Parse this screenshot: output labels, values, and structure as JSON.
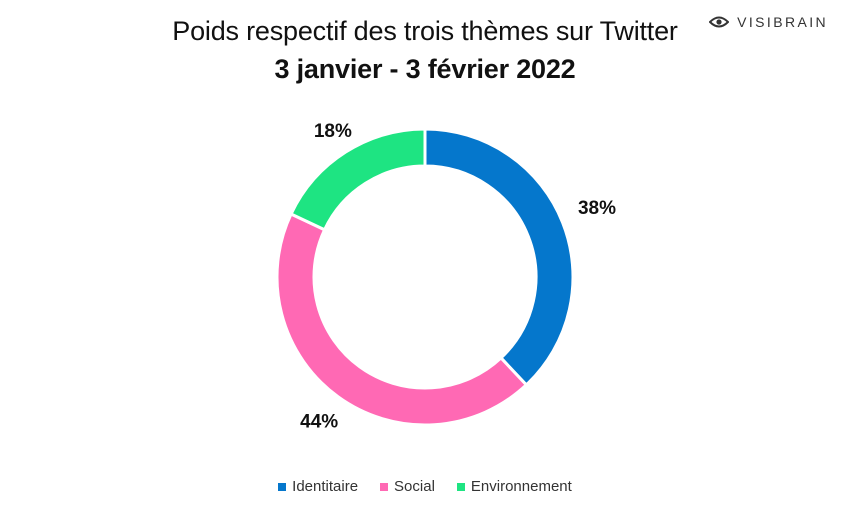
{
  "chart_title": "Poids respectif des trois thèmes sur Twitter",
  "chart_subtitle": "3 janvier - 3 février 2022",
  "brand": {
    "name": "VISIBRAIN",
    "icon": "eye-icon"
  },
  "chart_data": {
    "type": "pie",
    "variant": "donut",
    "title": "Poids respectif des trois thèmes sur Twitter",
    "subtitle": "3 janvier - 3 février 2022",
    "categories": [
      "Identitaire",
      "Social",
      "Environnement"
    ],
    "values": [
      38,
      44,
      18
    ],
    "labels": [
      "38%",
      "44%",
      "18%"
    ],
    "colors": [
      "#0577CC",
      "#FF69B4",
      "#1EE482"
    ],
    "legend_position": "bottom"
  }
}
